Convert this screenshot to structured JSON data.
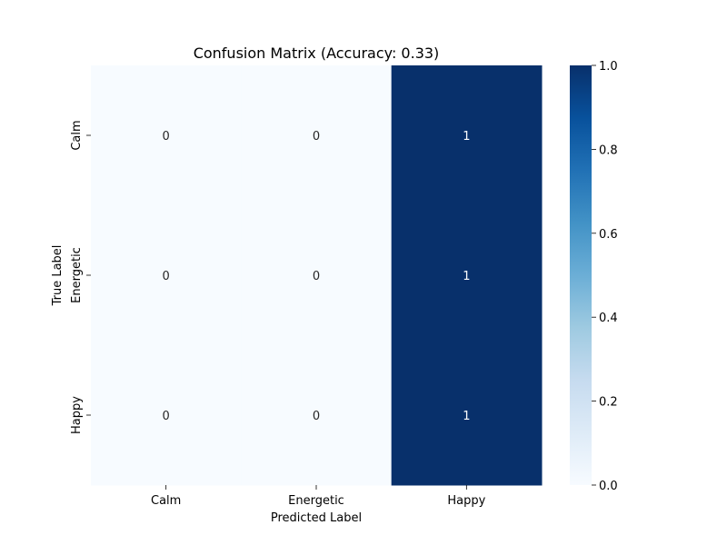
{
  "chart_data": {
    "type": "heatmap",
    "title": "Confusion Matrix (Accuracy: 0.33)",
    "xlabel": "Predicted Label",
    "ylabel": "True Label",
    "x_categories": [
      "Calm",
      "Energetic",
      "Happy"
    ],
    "y_categories": [
      "Calm",
      "Energetic",
      "Happy"
    ],
    "values": [
      [
        0,
        0,
        1
      ],
      [
        0,
        0,
        1
      ],
      [
        0,
        0,
        1
      ]
    ],
    "colormap": "Blues",
    "colorbar": {
      "range": [
        0.0,
        1.0
      ],
      "ticks": [
        "0.0",
        "0.2",
        "0.4",
        "0.6",
        "0.8",
        "1.0"
      ],
      "low_color": "#f7fbff",
      "high_color": "#08306b"
    },
    "annotated": true,
    "grid": false
  }
}
